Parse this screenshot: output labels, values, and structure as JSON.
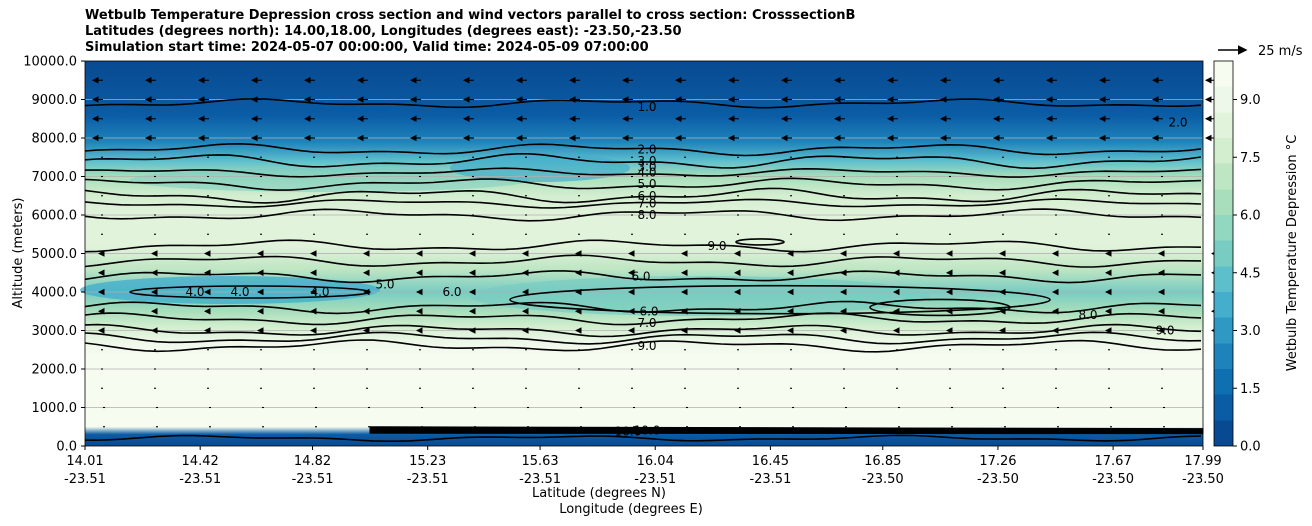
{
  "title_lines": [
    "Wetbulb Temperature Depression cross section and wind vectors parallel to cross section: CrosssectionB",
    "Latitudes (degrees north): 14.00,18.00, Longitudes (degrees east): -23.50,-23.50",
    "Simulation start time: 2024-05-07 00:00:00, Valid time: 2024-05-09 07:00:00"
  ],
  "quiver_key": "25 m/s",
  "colors": {
    "background": "#ffffff",
    "contour_line": "#000000",
    "cmap": [
      "#084a91",
      "#0a5ca5",
      "#0f70b1",
      "#1f83bb",
      "#2f98c3",
      "#45aecc",
      "#5ebfcc",
      "#78ccc2",
      "#92d7bf",
      "#a8debb",
      "#bfe6c3",
      "#d3eecf",
      "#e2f3dc",
      "#eef8ea",
      "#f7fcf0"
    ]
  },
  "chart_data": {
    "type": "contour",
    "xlabel": "Latitude (degrees N)",
    "xlabel2": "Longitude (degrees E)",
    "ylabel": "Altitude (meters)",
    "ylim": [
      0,
      10000
    ],
    "xlim": [
      14.01,
      17.99
    ],
    "grid": "horizontal",
    "yticks": [
      "0.0",
      "1000.0",
      "2000.0",
      "3000.0",
      "4000.0",
      "5000.0",
      "6000.0",
      "7000.0",
      "8000.0",
      "9000.0",
      "10000.0"
    ],
    "xticks_lat": [
      "14.01",
      "14.42",
      "14.82",
      "15.23",
      "15.63",
      "16.04",
      "16.45",
      "16.85",
      "17.26",
      "17.67",
      "17.99"
    ],
    "xticks_lon": [
      "-23.51",
      "-23.51",
      "-23.51",
      "-23.51",
      "-23.51",
      "-23.51",
      "-23.51",
      "-23.50",
      "-23.50",
      "-23.50",
      "-23.50"
    ],
    "colorbar_label": "Wetbulb Temperature Depression °C",
    "colorbar_ticks": [
      "0.0",
      "1.5",
      "3.0",
      "4.5",
      "6.0",
      "7.5",
      "9.0"
    ],
    "colorbar_range": [
      0,
      10
    ],
    "contour_labels": [
      "1.0",
      "2.0",
      "3.0",
      "4.0",
      "5.0",
      "6.0",
      "7.0",
      "8.0",
      "9.0",
      "10.0",
      "4.0",
      "4.0",
      "4.0",
      "5.0",
      "6.0",
      "6.0",
      "6.0",
      "7.0",
      "9.0",
      "8.0",
      "9.0",
      "2.0",
      "3.0",
      "10.0"
    ],
    "profile": [
      {
        "alt": 0,
        "value": 0.5
      },
      {
        "alt": 300,
        "value": 1.0
      },
      {
        "alt": 500,
        "value": 10.0
      },
      {
        "alt": 2300,
        "value": 10.0
      },
      {
        "alt": 2700,
        "value": 9.0
      },
      {
        "alt": 3100,
        "value": 7.5
      },
      {
        "alt": 3500,
        "value": 6.0
      },
      {
        "alt": 4000,
        "value": 5.2
      },
      {
        "alt": 4600,
        "value": 6.8
      },
      {
        "alt": 5200,
        "value": 8.6
      },
      {
        "alt": 6000,
        "value": 8.6
      },
      {
        "alt": 6500,
        "value": 7.5
      },
      {
        "alt": 7000,
        "value": 6.5
      },
      {
        "alt": 7400,
        "value": 4.0
      },
      {
        "alt": 7900,
        "value": 2.0
      },
      {
        "alt": 8600,
        "value": 1.2
      },
      {
        "alt": 10000,
        "value": 0.6
      }
    ]
  }
}
